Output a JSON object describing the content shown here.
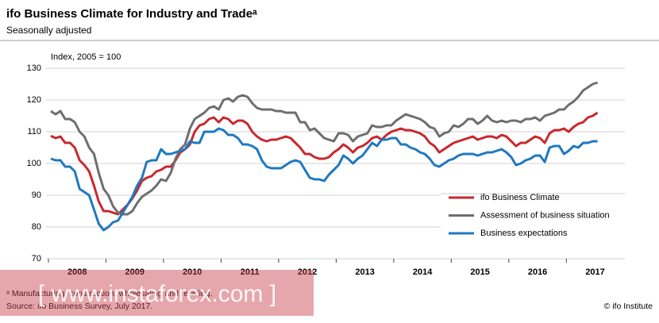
{
  "chart_data": {
    "type": "line",
    "title": "ifo Business Climate for Industry and Tradeᵃ",
    "subtitle": "Seasonally adjusted",
    "y_label": "Index, 2005 = 100",
    "year_labels": [
      "2008",
      "2009",
      "2010",
      "2011",
      "2012",
      "2013",
      "2014",
      "2015",
      "2016",
      "2017"
    ],
    "ylim": [
      70,
      130
    ],
    "yticks": [
      70,
      80,
      90,
      100,
      110,
      120,
      130
    ],
    "grid": true,
    "legend": "lower right",
    "series": [
      {
        "name": "ifo Business Climate",
        "color": "#c8282d",
        "values": [
          108.7,
          108,
          108.5,
          106.5,
          106.5,
          105,
          101,
          99.5,
          97.5,
          93,
          88,
          85,
          85,
          84.5,
          84,
          85.5,
          87,
          89,
          91.5,
          94.5,
          95.5,
          96,
          97.5,
          98,
          99,
          99,
          101,
          103.5,
          104.5,
          106,
          110,
          112,
          112.5,
          114,
          114.5,
          113,
          114.5,
          114,
          112.5,
          113.5,
          113.5,
          112.5,
          110,
          108.5,
          107.5,
          107,
          107.5,
          107.5,
          108,
          108.5,
          108,
          106.5,
          105,
          103,
          103,
          102,
          101.5,
          101.5,
          102,
          103.5,
          104.5,
          106,
          105,
          103.5,
          105,
          105.5,
          106.5,
          108,
          108.5,
          107.5,
          109,
          110,
          110.5,
          111,
          110.5,
          110.5,
          110,
          109.5,
          108.5,
          106.5,
          105.5,
          103.5,
          104.5,
          105.5,
          106.5,
          107,
          107.5,
          108,
          108.5,
          107.5,
          108,
          108.5,
          108.5,
          108,
          109,
          108.5,
          107,
          105.5,
          106.5,
          106.5,
          107.5,
          108.5,
          108,
          106.5,
          109.5,
          110.5,
          110.5,
          111,
          110,
          111.5,
          112.5,
          113,
          114.5,
          115,
          116
        ]
      },
      {
        "name": "Assessment of business situation",
        "color": "#6e6e6e",
        "values": [
          116.5,
          115.5,
          116.5,
          114,
          114,
          113,
          110,
          108.5,
          105,
          103,
          97,
          92,
          90,
          86.5,
          84.5,
          84,
          84,
          85,
          87.5,
          89.5,
          90.5,
          91.5,
          93,
          95,
          94.5,
          97,
          101.5,
          104.5,
          106,
          111,
          114,
          115,
          116,
          117.5,
          118,
          117,
          120,
          120.5,
          119.5,
          121,
          121.5,
          121,
          119,
          117.5,
          117,
          117,
          117,
          116.5,
          116.5,
          116,
          116,
          116,
          113,
          113,
          110.5,
          111,
          109.5,
          108,
          107.5,
          107,
          109.5,
          109.5,
          109,
          107,
          108.5,
          109,
          109.5,
          112,
          111.5,
          111.5,
          112,
          112,
          113.5,
          114.5,
          115.5,
          115,
          114.5,
          114,
          113,
          111.5,
          111,
          108.5,
          109.5,
          110,
          112,
          111.5,
          112.5,
          114,
          114,
          112.5,
          113.5,
          115,
          113.5,
          113,
          113.5,
          113,
          113.5,
          113.5,
          113,
          114,
          114,
          114.5,
          113.5,
          115,
          115.5,
          116,
          117,
          117,
          118.5,
          119.5,
          121,
          123,
          124,
          125,
          125.5
        ]
      },
      {
        "name": "Business expectations",
        "color": "#1f78c1",
        "values": [
          101.5,
          101,
          101,
          99,
          99,
          97.5,
          92,
          91,
          90,
          85.5,
          81,
          79,
          80,
          81.5,
          82,
          84.5,
          87,
          89.5,
          93,
          95.5,
          100.5,
          101,
          101,
          104.5,
          103,
          103,
          103.5,
          104,
          104.5,
          107,
          106.5,
          106.5,
          110,
          110,
          110,
          111,
          110.5,
          109,
          109,
          108,
          106,
          106,
          105.5,
          104.5,
          101,
          99,
          98.5,
          98.5,
          98.5,
          99.5,
          100.5,
          101,
          100.5,
          98,
          95.5,
          95,
          95,
          94.5,
          96.5,
          98,
          99.5,
          102.5,
          101.5,
          100,
          101.5,
          102.5,
          104.5,
          106.5,
          105.5,
          107.5,
          107.5,
          108,
          108,
          106,
          106,
          105,
          104.5,
          103.5,
          103,
          101.5,
          99.5,
          99,
          100,
          101,
          101.5,
          102.5,
          103,
          103,
          103,
          102.5,
          103,
          103.5,
          103.5,
          104,
          104.5,
          103.5,
          102,
          99.5,
          100,
          101,
          101.5,
          102.5,
          102.5,
          100.5,
          105,
          105.5,
          105.5,
          103,
          104,
          105.5,
          105,
          106.5,
          106.5,
          107,
          107
        ]
      }
    ]
  },
  "footnote": "ᵃ Manufacturing, construction, wholesaling and retailing.",
  "source": "Source: ifo Business Survey, July 2017.",
  "credit": "© ifo Institute",
  "watermark": "[ www.instaforex.com ]"
}
